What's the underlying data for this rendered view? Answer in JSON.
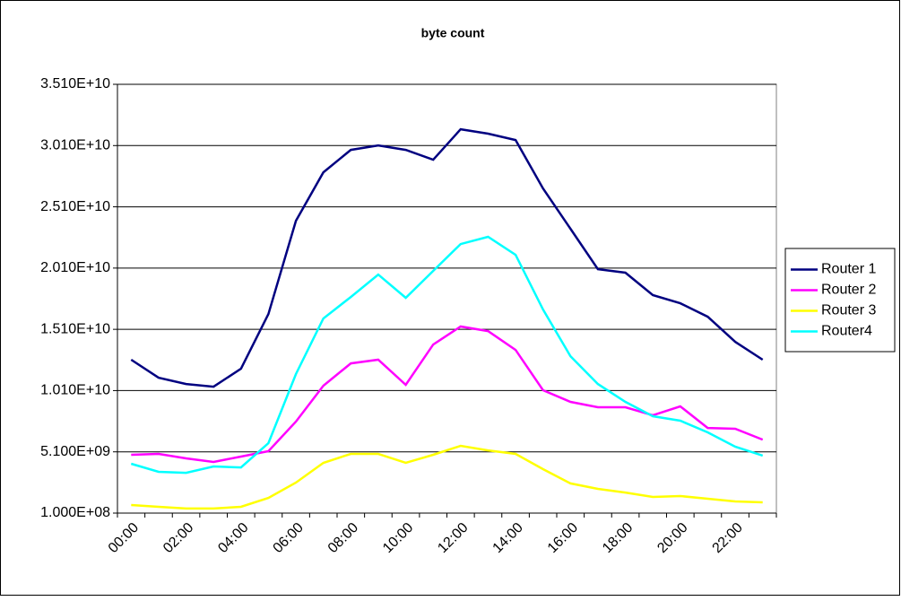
{
  "chart_data": {
    "type": "line",
    "title": "byte count",
    "categories": [
      "00:00",
      null,
      "02:00",
      null,
      "04:00",
      null,
      "06:00",
      null,
      "08:00",
      null,
      "10:00",
      null,
      "12:00",
      null,
      "14:00",
      null,
      "16:00",
      null,
      "18:00",
      null,
      "20:00",
      null,
      "22:00",
      null
    ],
    "series": [
      {
        "name": "Router 1",
        "color": "#000080",
        "values": [
          12620000000.0,
          11150000000.0,
          10640000000.0,
          10420000000.0,
          11890000000.0,
          16350000000.0,
          23960000000.0,
          27920000000.0,
          29750000000.0,
          30110000000.0,
          29750000000.0,
          28940000000.0,
          31430000000.0,
          31070000000.0,
          30550000000.0,
          26600000000.0,
          23310000000.0,
          20010000000.0,
          19720000000.0,
          17890000000.0,
          17230000000.0,
          16130000000.0,
          14080000000.0,
          12620000000.0
        ]
      },
      {
        "name": "Router 2",
        "color": "#ff00ff",
        "values": [
          4860000000.0,
          4930000000.0,
          4570000000.0,
          4270000000.0,
          4710000000.0,
          5150000000.0,
          7570000000.0,
          10500000000.0,
          12320000000.0,
          12620000000.0,
          10570000000.0,
          13860000000.0,
          15330000000.0,
          14960000000.0,
          13420000000.0,
          10130000000.0,
          9180000000.0,
          8740000000.0,
          8740000000.0,
          8080000000.0,
          8810000000.0,
          7050000000.0,
          6980000000.0,
          6100000000.0
        ]
      },
      {
        "name": "Router 3",
        "color": "#ffff00",
        "values": [
          760000000.0,
          610000000.0,
          470000000.0,
          470000000.0,
          610000000.0,
          1340000000.0,
          2590000000.0,
          4200000000.0,
          4930000000.0,
          4930000000.0,
          4200000000.0,
          4860000000.0,
          5590000000.0,
          5220000000.0,
          4930000000.0,
          3690000000.0,
          2520000000.0,
          2080000000.0,
          1780000000.0,
          1420000000.0,
          1490000000.0,
          1270000000.0,
          1050000000.0,
          980000000.0
        ]
      },
      {
        "name": "Router4",
        "color": "#00ffff",
        "values": [
          4130000000.0,
          3470000000.0,
          3390000000.0,
          3910000000.0,
          3830000000.0,
          5810000000.0,
          11450000000.0,
          15990000000.0,
          17740000000.0,
          19570000000.0,
          17670000000.0,
          19870000000.0,
          22060000000.0,
          22650000000.0,
          21180000000.0,
          16720000000.0,
          12910000000.0,
          10640000000.0,
          9180000000.0,
          8010000000.0,
          7640000000.0,
          6690000000.0,
          5520000000.0,
          4790000000.0
        ]
      }
    ],
    "ylim": [
      100000000,
      35100000000
    ],
    "yticks": [
      {
        "value": 100000000,
        "label": "1.000E+08"
      },
      {
        "value": 5100000000,
        "label": "5.100E+09"
      },
      {
        "value": 10100000000,
        "label": "1.010E+10"
      },
      {
        "value": 15100000000,
        "label": "1.510E+10"
      },
      {
        "value": 20100000000,
        "label": "2.010E+10"
      },
      {
        "value": 25100000000,
        "label": "2.510E+10"
      },
      {
        "value": 30100000000,
        "label": "3.010E+10"
      },
      {
        "value": 35100000000,
        "label": "3.510E+10"
      }
    ],
    "grid": true,
    "legend": "right"
  }
}
